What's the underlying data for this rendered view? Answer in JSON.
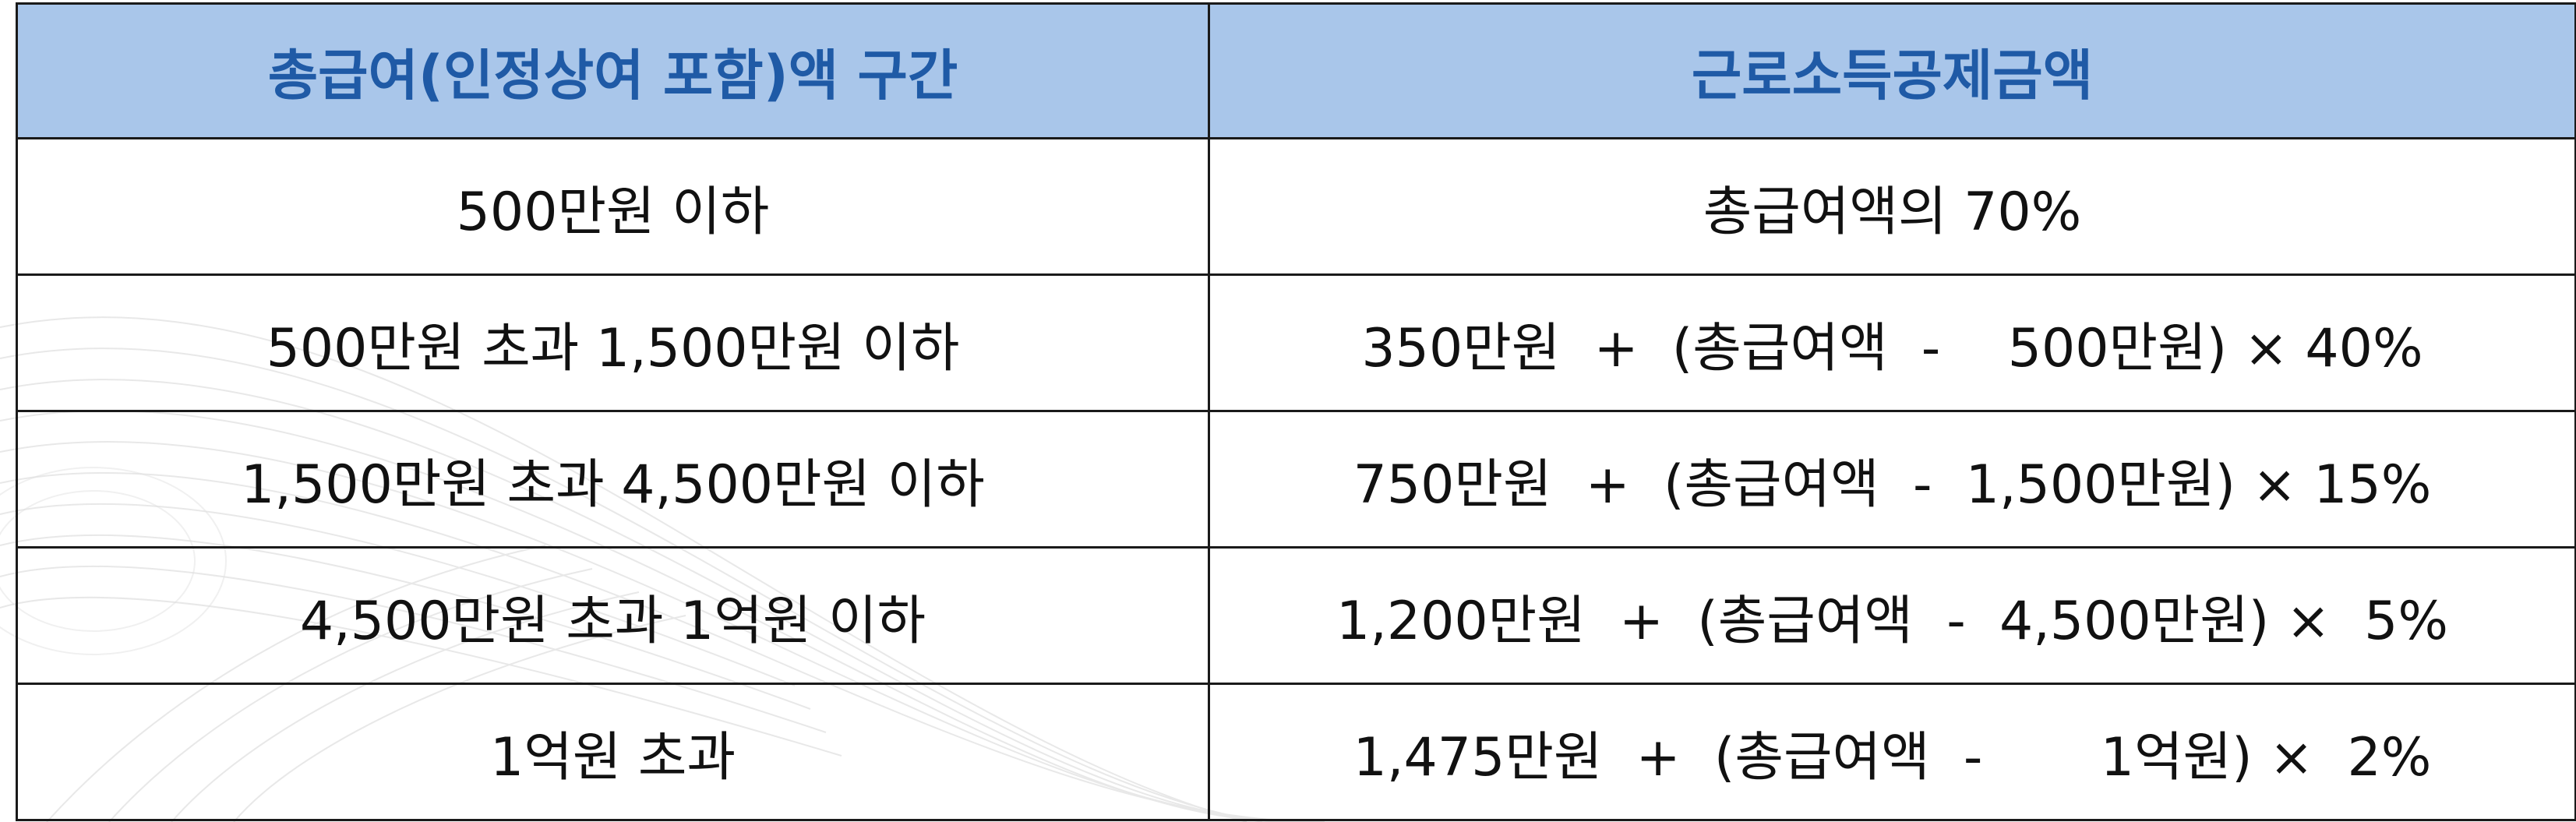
{
  "table": {
    "headers": [
      "총급여(인정상여 포함)액 구간",
      "근로소득공제금액"
    ],
    "rows": [
      {
        "range": "500만원 이하",
        "deduction": "총급여액의 70%"
      },
      {
        "range": "500만원 초과  1,500만원 이하",
        "deduction": "350만원  +  (총급여액  -    500만원) × 40%"
      },
      {
        "range": "1,500만원 초과  4,500만원 이하",
        "deduction": "750만원  +  (총급여액  -  1,500만원) × 15%"
      },
      {
        "range": "4,500만원 초과 1억원 이하",
        "deduction": "1,200만원  +  (총급여액  -  4,500만원) ×  5%"
      },
      {
        "range": "1억원 초과",
        "deduction": "1,475만원  +  (총급여액  -       1억원) ×  2%"
      }
    ]
  },
  "colors": {
    "header_bg": "#a9c6ea",
    "header_text": "#1f5aa6",
    "border": "#1a1a1a",
    "body_text": "#111111"
  }
}
